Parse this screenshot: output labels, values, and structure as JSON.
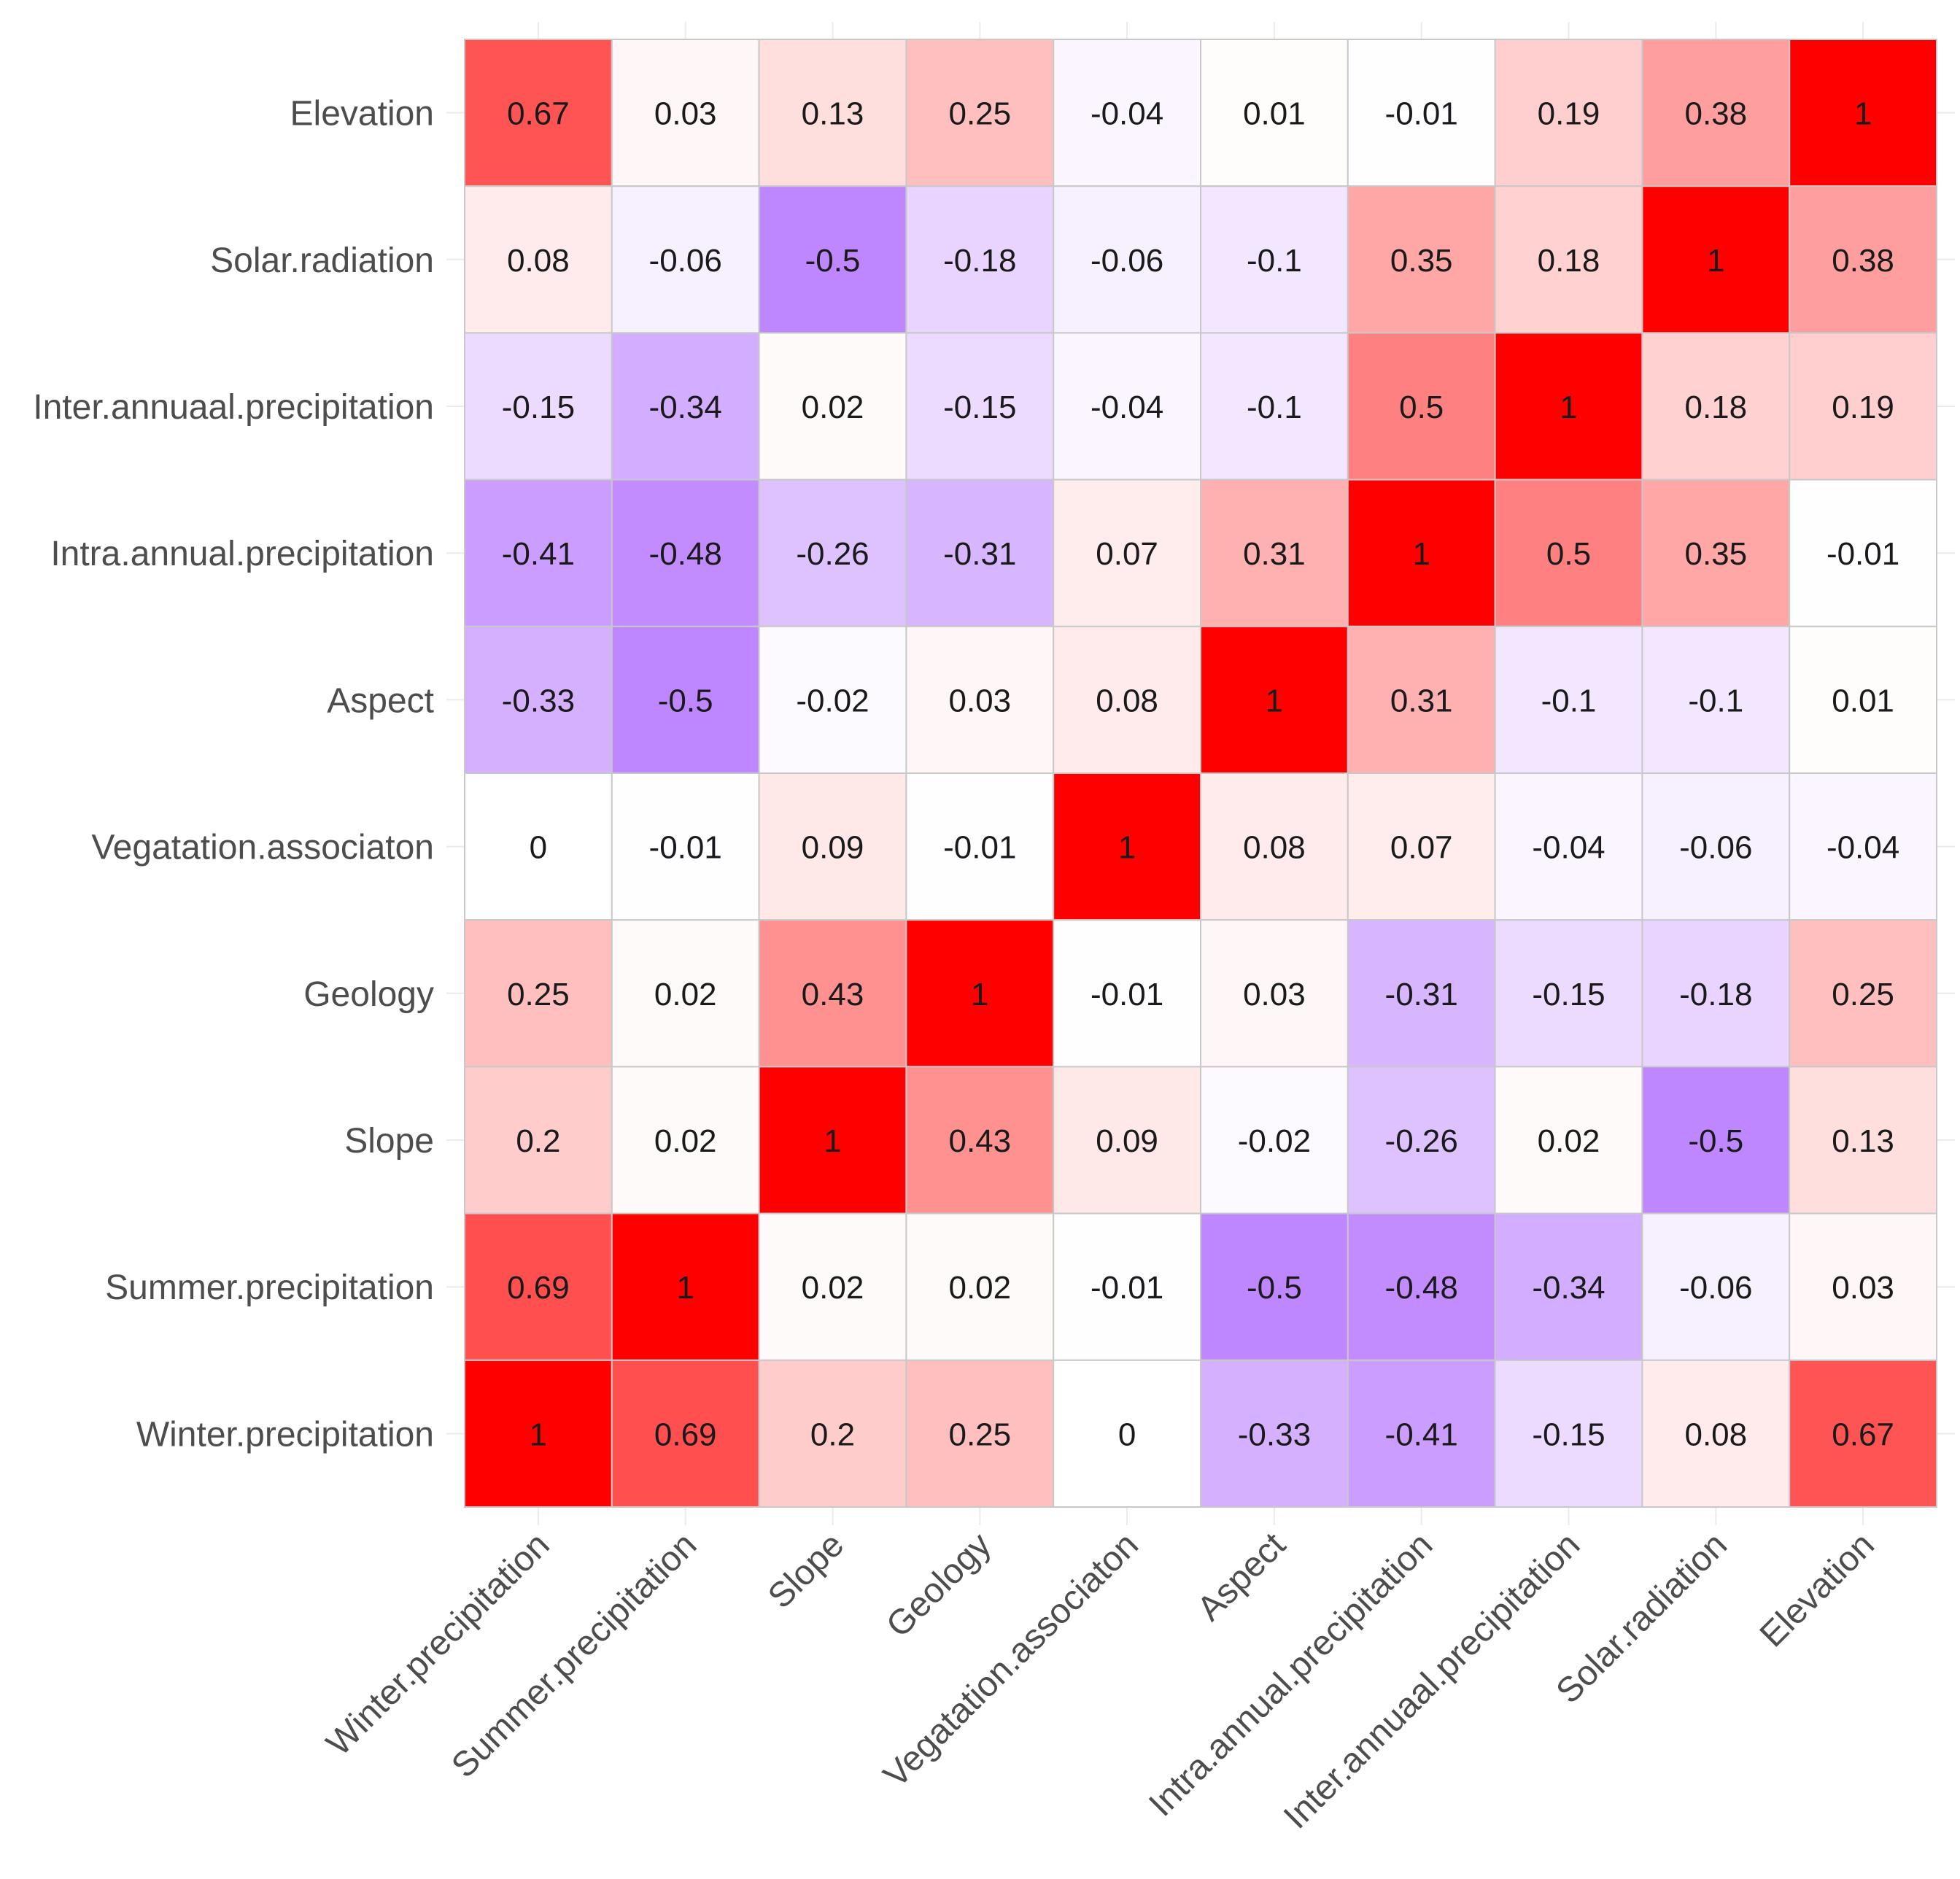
{
  "chart_data": {
    "type": "heatmap",
    "title": "",
    "xlabel": "",
    "ylabel": "",
    "x_categories": [
      "Winter.precipitation",
      "Summer.precipitation",
      "Slope",
      "Geology",
      "Vegatation.associaton",
      "Aspect",
      "Intra.annual.precipitation",
      "Inter.annuaal.precipitation",
      "Solar.radiation",
      "Elevation"
    ],
    "y_categories_top_to_bottom": [
      "Elevation",
      "Solar.radiation",
      "Inter.annuaal.precipitation",
      "Intra.annual.precipitation",
      "Aspect",
      "Vegatation.associaton",
      "Geology",
      "Slope",
      "Summer.precipitation",
      "Winter.precipitation"
    ],
    "values": [
      [
        0.67,
        0.03,
        0.13,
        0.25,
        -0.04,
        0.01,
        -0.01,
        0.19,
        0.38,
        1
      ],
      [
        0.08,
        -0.06,
        -0.5,
        -0.18,
        -0.06,
        -0.1,
        0.35,
        0.18,
        1,
        0.38
      ],
      [
        -0.15,
        -0.34,
        0.02,
        -0.15,
        -0.04,
        -0.1,
        0.5,
        1,
        0.18,
        0.19
      ],
      [
        -0.41,
        -0.48,
        -0.26,
        -0.31,
        0.07,
        0.31,
        1,
        0.5,
        0.35,
        -0.01
      ],
      [
        -0.33,
        -0.5,
        -0.02,
        0.03,
        0.08,
        1,
        0.31,
        -0.1,
        -0.1,
        0.01
      ],
      [
        0,
        -0.01,
        0.09,
        -0.01,
        1,
        0.08,
        0.07,
        -0.04,
        -0.06,
        -0.04
      ],
      [
        0.25,
        0.02,
        0.43,
        1,
        -0.01,
        0.03,
        -0.31,
        -0.15,
        -0.18,
        0.25
      ],
      [
        0.2,
        0.02,
        1,
        0.43,
        0.09,
        -0.02,
        -0.26,
        0.02,
        -0.5,
        0.13
      ],
      [
        0.69,
        1,
        0.02,
        0.02,
        -0.01,
        -0.5,
        -0.48,
        -0.34,
        -0.06,
        0.03
      ],
      [
        1,
        0.69,
        0.2,
        0.25,
        0,
        -0.33,
        -0.41,
        -0.15,
        0.08,
        0.67
      ]
    ],
    "value_range": [
      -0.5,
      1
    ],
    "colors": {
      "positive_max": "#ff0000",
      "zero": "#ffffff",
      "negative_max": "#bf87ff",
      "cell_border": "#c8c8c8",
      "label_text": "#4d4d4d",
      "value_text": "#1a1a1a"
    },
    "legend": "none",
    "grid": true
  }
}
